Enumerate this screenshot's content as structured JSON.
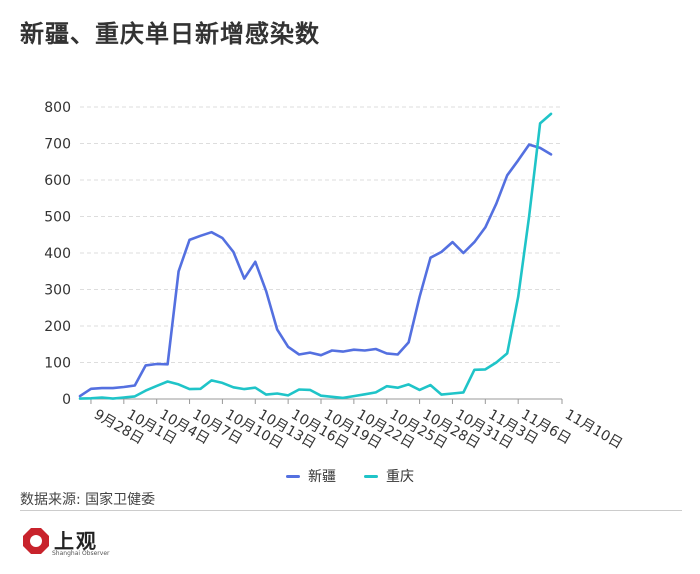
{
  "title": "新疆、重庆单日新增感染数",
  "source": "数据来源: 国家卫健委",
  "logo": {
    "text": "上观",
    "subtext": "Shanghai Observer"
  },
  "colors": {
    "xinjiang": "#5470e0",
    "chongqing": "#1fc4c8",
    "grid": "#dddddd",
    "axis": "#999999"
  },
  "chart_data": {
    "type": "line",
    "xlabel": "",
    "ylabel": "",
    "ylim": [
      0,
      800
    ],
    "yticks": [
      0,
      100,
      200,
      300,
      400,
      500,
      600,
      700,
      800
    ],
    "grid": true,
    "legend_position": "bottom",
    "x": [
      "9月27日",
      "9月28日",
      "9月29日",
      "9月30日",
      "10月1日",
      "10月2日",
      "10月3日",
      "10月4日",
      "10月5日",
      "10月6日",
      "10月7日",
      "10月8日",
      "10月9日",
      "10月10日",
      "10月11日",
      "10月12日",
      "10月13日",
      "10月14日",
      "10月15日",
      "10月16日",
      "10月17日",
      "10月18日",
      "10月19日",
      "10月20日",
      "10月21日",
      "10月22日",
      "10月23日",
      "10月24日",
      "10月25日",
      "10月26日",
      "10月27日",
      "10月28日",
      "10月29日",
      "10月30日",
      "10月31日",
      "11月1日",
      "11月2日",
      "11月3日",
      "11月4日",
      "11月5日",
      "11月6日",
      "11月7日",
      "11月8日",
      "11月9日",
      "11月10日"
    ],
    "x_tick_labels": [
      "9月28日",
      "10月1日",
      "10月4日",
      "10月7日",
      "10月10日",
      "10月13日",
      "10月16日",
      "10月19日",
      "10月22日",
      "10月25日",
      "10月28日",
      "10月31日",
      "11月3日",
      "11月6日",
      "11月10日"
    ],
    "series": [
      {
        "name": "新疆",
        "color": "#5470e0",
        "values": [
          8,
          28,
          30,
          30,
          33,
          37,
          92,
          96,
          95,
          350,
          436,
          447,
          457,
          441,
          403,
          330,
          376,
          295,
          190,
          143,
          122,
          127,
          120,
          133,
          130,
          135,
          133,
          137,
          125,
          122,
          155,
          280,
          387,
          403,
          430,
          400,
          430,
          470,
          535,
          613,
          654,
          697,
          688,
          670,
          null
        ]
      },
      {
        "name": "重庆",
        "color": "#1fc4c8",
        "values": [
          1,
          2,
          4,
          1,
          4,
          7,
          23,
          36,
          48,
          40,
          27,
          28,
          51,
          44,
          32,
          27,
          31,
          12,
          15,
          10,
          26,
          25,
          9,
          6,
          3,
          8,
          13,
          18,
          35,
          31,
          40,
          25,
          38,
          12,
          15,
          18,
          80,
          81,
          100,
          125,
          280,
          500,
          755,
          781,
          null
        ]
      }
    ]
  }
}
